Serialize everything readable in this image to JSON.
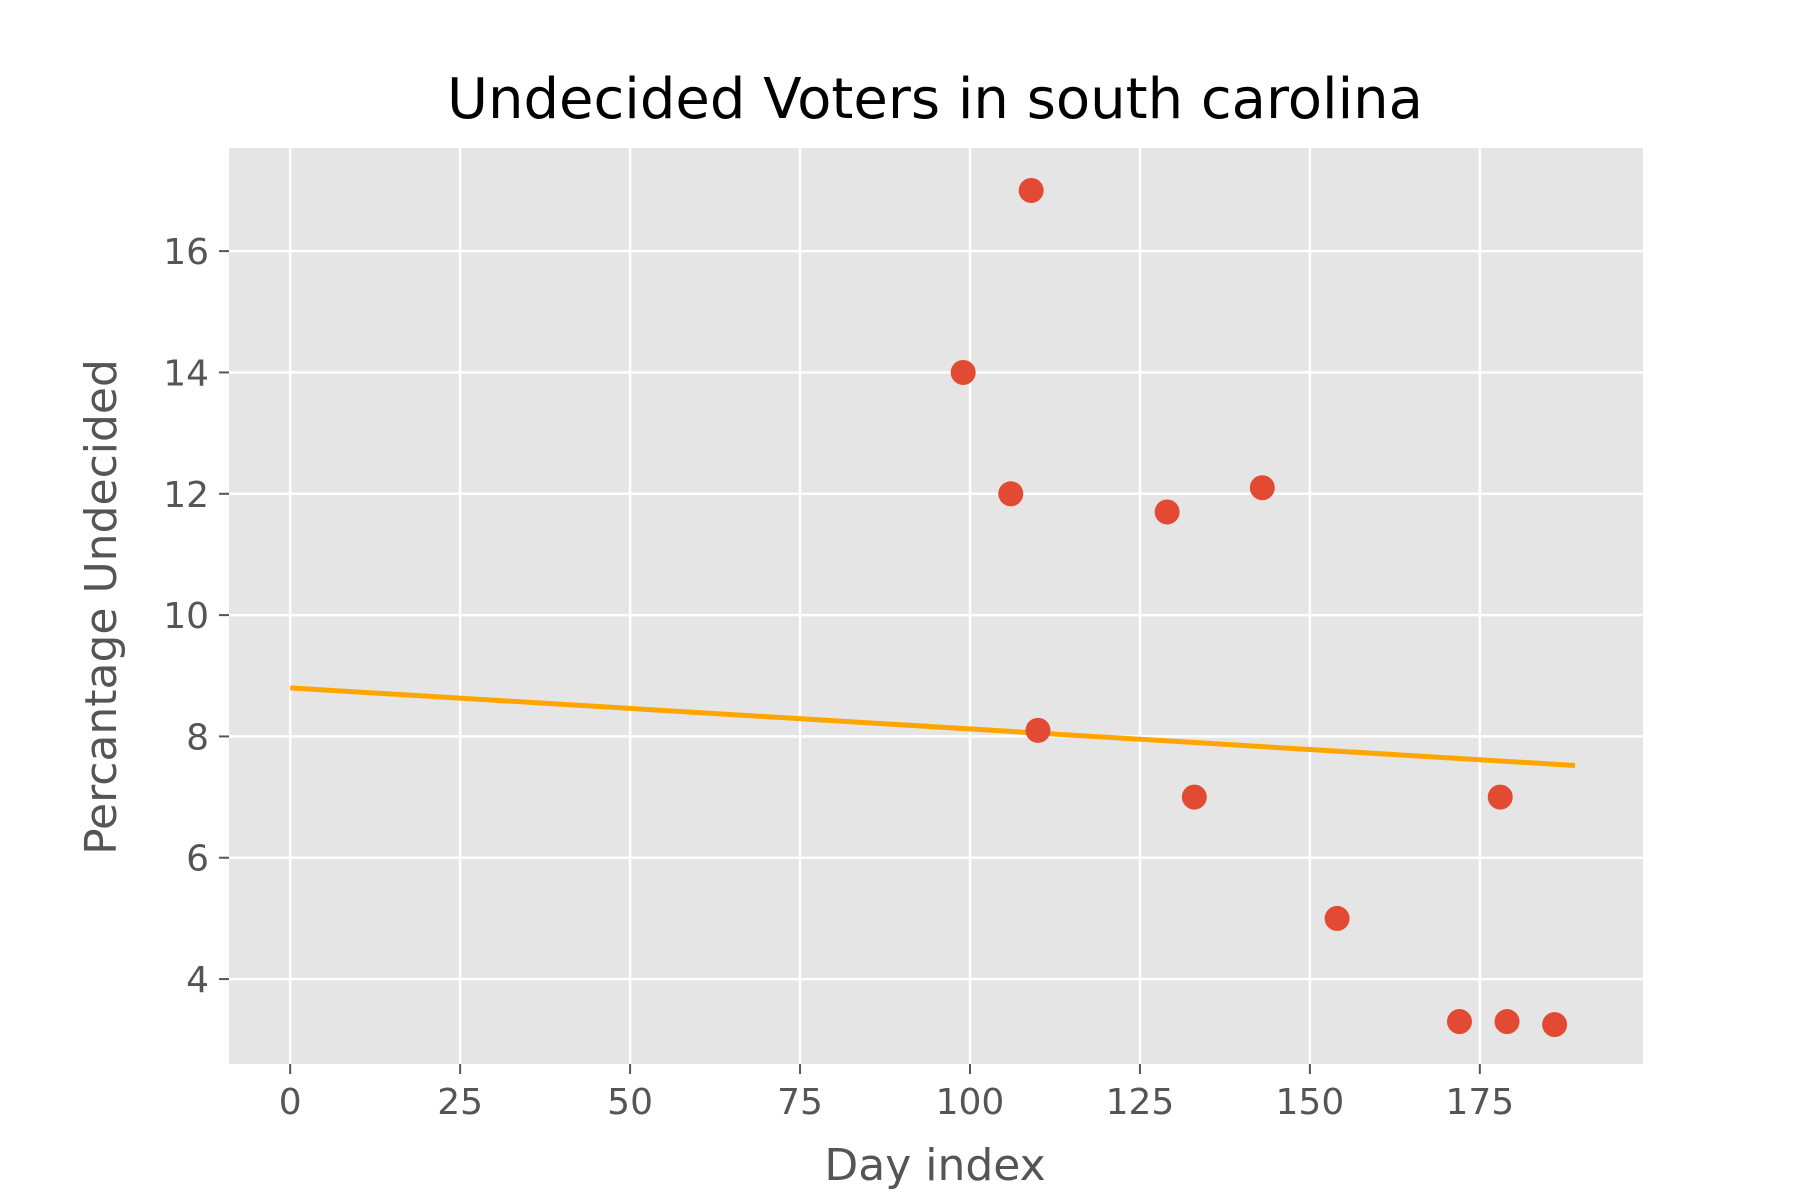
{
  "chart_data": {
    "type": "scatter",
    "title": "Undecided Voters in south carolina",
    "xlabel": "Day index",
    "ylabel": "Percantage Undecided",
    "xlim": [
      -9,
      199
    ],
    "ylim": [
      2.6,
      17.7
    ],
    "xticks": [
      0,
      25,
      50,
      75,
      100,
      125,
      150,
      175
    ],
    "yticks": [
      4,
      6,
      8,
      10,
      12,
      14,
      16
    ],
    "grid": true,
    "legend": "none",
    "series": [
      {
        "type": "scatter",
        "color": "#E24A33",
        "points": [
          {
            "x": 99,
            "y": 14
          },
          {
            "x": 106,
            "y": 12
          },
          {
            "x": 109,
            "y": 17
          },
          {
            "x": 110,
            "y": 8.1
          },
          {
            "x": 129,
            "y": 11.7
          },
          {
            "x": 133,
            "y": 7
          },
          {
            "x": 143,
            "y": 12.1
          },
          {
            "x": 154,
            "y": 5
          },
          {
            "x": 172,
            "y": 3.3
          },
          {
            "x": 178,
            "y": 7
          },
          {
            "x": 179,
            "y": 3.3
          },
          {
            "x": 186,
            "y": 3.25
          }
        ]
      },
      {
        "type": "line",
        "color": "#FFA500",
        "points": [
          {
            "x": 0,
            "y": 8.8
          },
          {
            "x": 189,
            "y": 7.52
          }
        ]
      }
    ],
    "colors": {
      "plot_background": "#E5E5E5",
      "grid": "#FFFFFF",
      "tick_mark": "#555555"
    }
  }
}
